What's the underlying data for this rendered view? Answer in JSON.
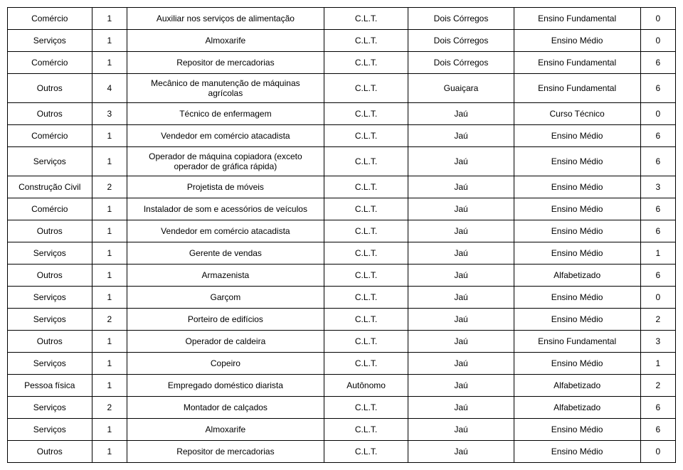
{
  "table": {
    "rows": [
      [
        "Comércio",
        "1",
        "Auxiliar nos serviços de alimentação",
        "C.L.T.",
        "Dois Córregos",
        "Ensino Fundamental",
        "0"
      ],
      [
        "Serviços",
        "1",
        "Almoxarife",
        "C.L.T.",
        "Dois Córregos",
        "Ensino Médio",
        "0"
      ],
      [
        "Comércio",
        "1",
        "Repositor de mercadorias",
        "C.L.T.",
        "Dois Córregos",
        "Ensino Fundamental",
        "6"
      ],
      [
        "Outros",
        "4",
        "Mecânico de manutenção de máquinas agrícolas",
        "C.L.T.",
        "Guaiçara",
        "Ensino Fundamental",
        "6"
      ],
      [
        "Outros",
        "3",
        "Técnico de enfermagem",
        "C.L.T.",
        "Jaú",
        "Curso Técnico",
        "0"
      ],
      [
        "Comércio",
        "1",
        "Vendedor em comércio atacadista",
        "C.L.T.",
        "Jaú",
        "Ensino Médio",
        "6"
      ],
      [
        "Serviços",
        "1",
        "Operador de máquina copiadora (exceto operador de gráfica rápida)",
        "C.L.T.",
        "Jaú",
        "Ensino Médio",
        "6"
      ],
      [
        "Construção Civil",
        "2",
        "Projetista de móveis",
        "C.L.T.",
        "Jaú",
        "Ensino Médio",
        "3"
      ],
      [
        "Comércio",
        "1",
        "Instalador de som e acessórios de veículos",
        "C.L.T.",
        "Jaú",
        "Ensino Médio",
        "6"
      ],
      [
        "Outros",
        "1",
        "Vendedor em comércio atacadista",
        "C.L.T.",
        "Jaú",
        "Ensino Médio",
        "6"
      ],
      [
        "Serviços",
        "1",
        "Gerente de vendas",
        "C.L.T.",
        "Jaú",
        "Ensino Médio",
        "1"
      ],
      [
        "Outros",
        "1",
        "Armazenista",
        "C.L.T.",
        "Jaú",
        "Alfabetizado",
        "6"
      ],
      [
        "Serviços",
        "1",
        "Garçom",
        "C.L.T.",
        "Jaú",
        "Ensino Médio",
        "0"
      ],
      [
        "Serviços",
        "2",
        "Porteiro de edifícios",
        "C.L.T.",
        "Jaú",
        "Ensino Médio",
        "2"
      ],
      [
        "Outros",
        "1",
        "Operador de caldeira",
        "C.L.T.",
        "Jaú",
        "Ensino Fundamental",
        "3"
      ],
      [
        "Serviços",
        "1",
        "Copeiro",
        "C.L.T.",
        "Jaú",
        "Ensino Médio",
        "1"
      ],
      [
        "Pessoa física",
        "1",
        "Empregado doméstico diarista",
        "Autônomo",
        "Jaú",
        "Alfabetizado",
        "2"
      ],
      [
        "Serviços",
        "2",
        "Montador de calçados",
        "C.L.T.",
        "Jaú",
        "Alfabetizado",
        "6"
      ],
      [
        "Serviços",
        "1",
        "Almoxarife",
        "C.L.T.",
        "Jaú",
        "Ensino Médio",
        "6"
      ],
      [
        "Outros",
        "1",
        "Repositor de mercadorias",
        "C.L.T.",
        "Jaú",
        "Ensino Médio",
        "0"
      ]
    ]
  }
}
